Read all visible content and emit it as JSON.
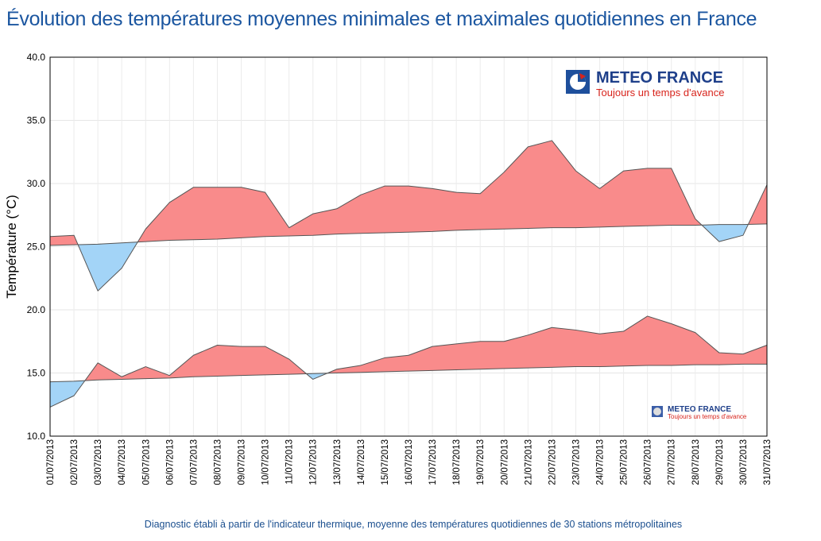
{
  "title": "Évolution des températures moyennes minimales et maximales quotidiennes en France",
  "footer": "Diagnostic établi à partir de l'indicateur thermique, moyenne des températures quotidiennes de 30 stations métropolitaines",
  "logo": {
    "name": "METEO FRANCE",
    "tagline": "Toujours un temps d'avance"
  },
  "colors": {
    "above": "#f98b8b",
    "below": "#a3d4f7",
    "title": "#1b56a0"
  },
  "chart_data": {
    "type": "area",
    "title": "Évolution des températures moyennes minimales et maximales quotidiennes en France",
    "xlabel": "",
    "ylabel": "Température (°C)",
    "ylim": [
      10,
      40
    ],
    "yticks": [
      "10.0",
      "15.0",
      "20.0",
      "25.0",
      "30.0",
      "35.0",
      "40.0"
    ],
    "grid": true,
    "categories": [
      "01/07/2013",
      "02/07/2013",
      "03/07/2013",
      "04/07/2013",
      "05/07/2013",
      "06/07/2013",
      "07/07/2013",
      "08/07/2013",
      "09/07/2013",
      "10/07/2013",
      "11/07/2013",
      "12/07/2013",
      "13/07/2013",
      "14/07/2013",
      "15/07/2013",
      "16/07/2013",
      "17/07/2013",
      "18/07/2013",
      "19/07/2013",
      "20/07/2013",
      "21/07/2013",
      "22/07/2013",
      "23/07/2013",
      "24/07/2013",
      "25/07/2013",
      "26/07/2013",
      "27/07/2013",
      "28/07/2013",
      "29/07/2013",
      "30/07/2013",
      "31/07/2013"
    ],
    "series": [
      {
        "role": "tmax_observed",
        "values": [
          25.8,
          25.9,
          21.5,
          23.3,
          26.4,
          28.5,
          29.7,
          29.7,
          29.7,
          29.3,
          26.5,
          27.6,
          28.0,
          29.1,
          29.8,
          29.8,
          29.6,
          29.3,
          29.2,
          30.9,
          32.9,
          33.4,
          31.0,
          29.6,
          31.0,
          31.2,
          31.2,
          27.2,
          25.4,
          25.9,
          29.9
        ]
      },
      {
        "role": "tmax_normal",
        "values": [
          25.1,
          25.15,
          25.2,
          25.3,
          25.4,
          25.5,
          25.55,
          25.6,
          25.7,
          25.8,
          25.85,
          25.9,
          26.0,
          26.05,
          26.1,
          26.15,
          26.2,
          26.3,
          26.35,
          26.4,
          26.45,
          26.5,
          26.5,
          26.55,
          26.6,
          26.65,
          26.7,
          26.7,
          26.75,
          26.75,
          26.8
        ]
      },
      {
        "role": "tmin_observed",
        "values": [
          12.3,
          13.2,
          15.8,
          14.7,
          15.5,
          14.8,
          16.4,
          17.2,
          17.1,
          17.1,
          16.1,
          14.5,
          15.3,
          15.6,
          16.2,
          16.4,
          17.1,
          17.3,
          17.5,
          17.5,
          18.0,
          18.6,
          18.4,
          18.1,
          18.3,
          19.5,
          18.9,
          18.2,
          16.6,
          16.5,
          17.2
        ]
      },
      {
        "role": "tmin_normal",
        "values": [
          14.3,
          14.35,
          14.45,
          14.5,
          14.55,
          14.6,
          14.7,
          14.75,
          14.8,
          14.85,
          14.9,
          14.95,
          15.0,
          15.05,
          15.1,
          15.15,
          15.2,
          15.25,
          15.3,
          15.35,
          15.4,
          15.45,
          15.5,
          15.5,
          15.55,
          15.6,
          15.6,
          15.65,
          15.65,
          15.7,
          15.7
        ]
      }
    ]
  }
}
